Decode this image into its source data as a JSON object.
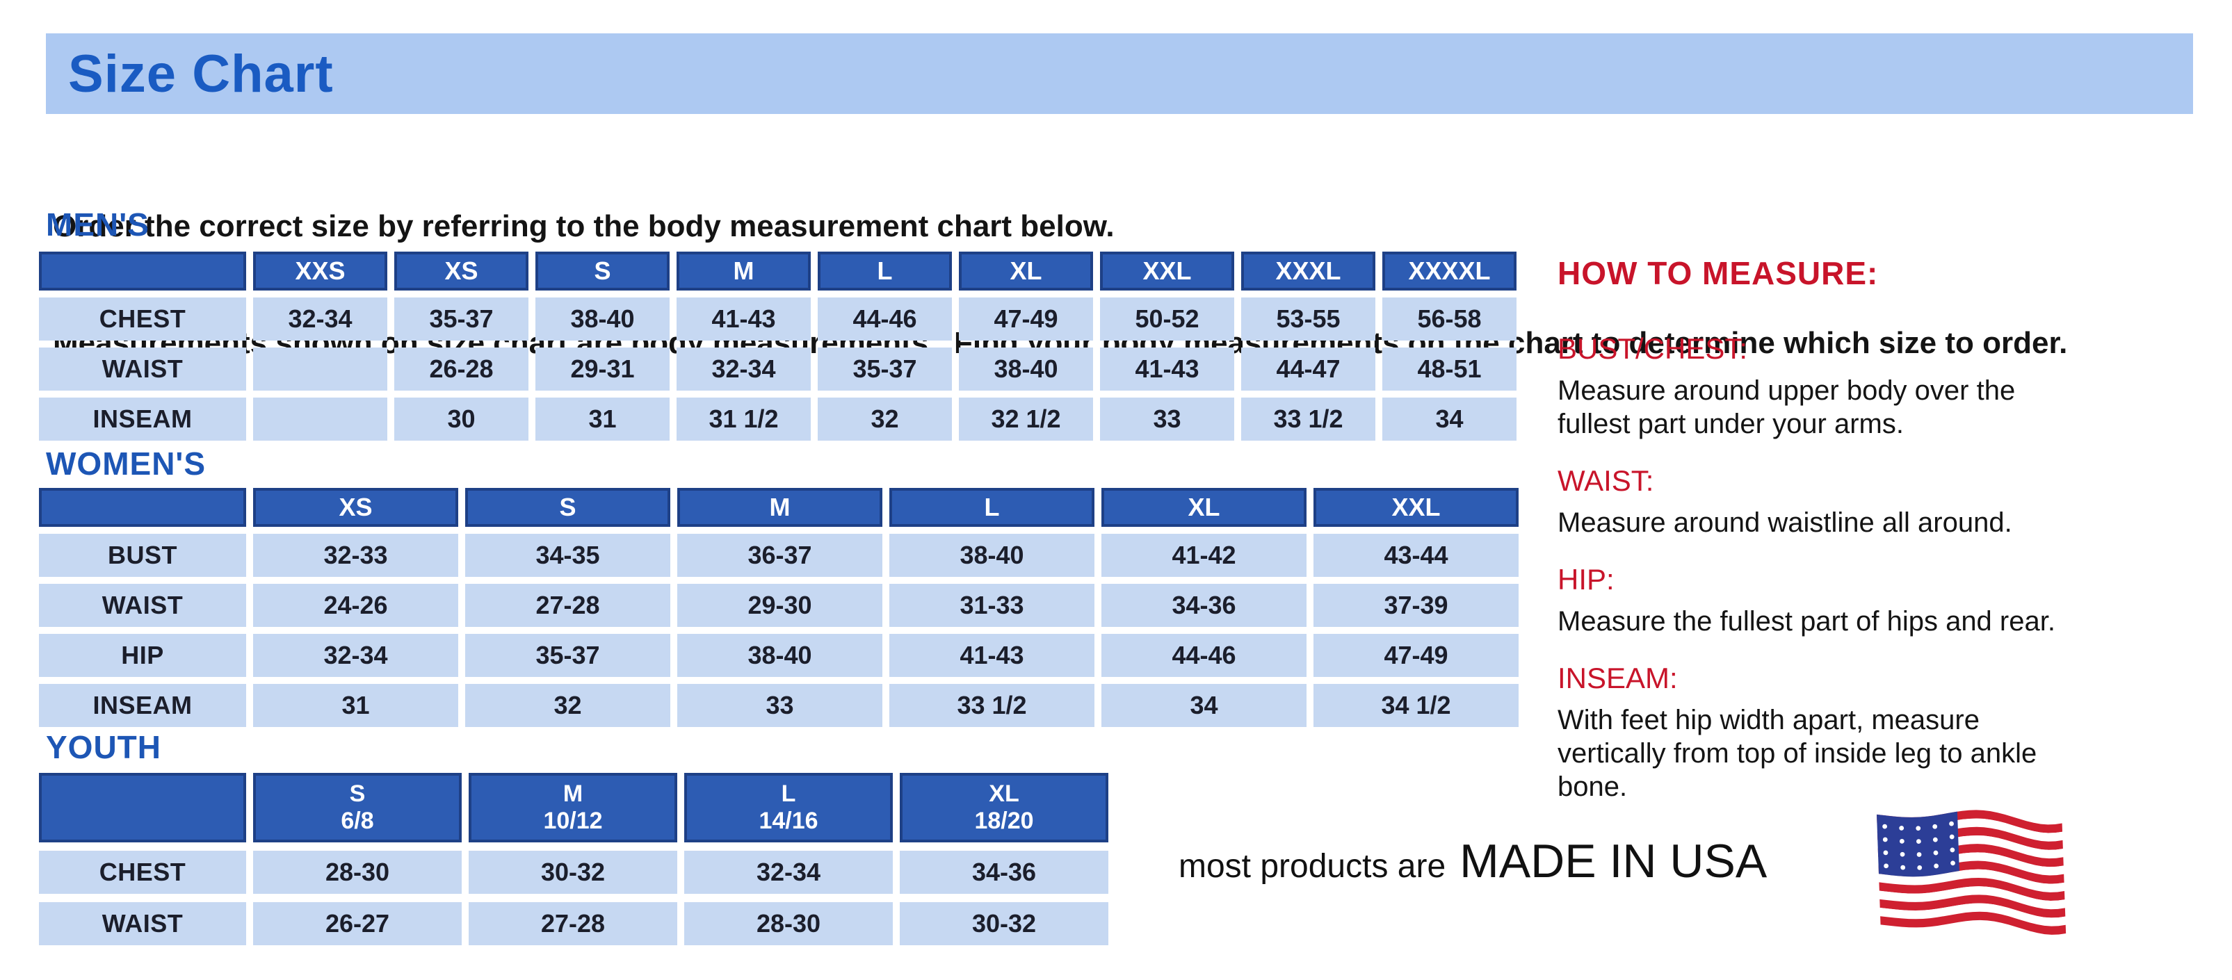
{
  "banner": {
    "title": "Size Chart"
  },
  "intro": {
    "line1": "Order the correct size by referring to the body measurement chart below.",
    "line2": "Measurements shown on size chart are body measurements.  Find your body measurements on the chart to determine which size to order."
  },
  "mens": {
    "heading": "MEN'S",
    "columns": [
      "XXS",
      "XS",
      "S",
      "M",
      "L",
      "XL",
      "XXL",
      "XXXL",
      "XXXXL"
    ],
    "rows": [
      {
        "label": "CHEST",
        "values": [
          "32-34",
          "35-37",
          "38-40",
          "41-43",
          "44-46",
          "47-49",
          "50-52",
          "53-55",
          "56-58"
        ]
      },
      {
        "label": "WAIST",
        "values": [
          "",
          "26-28",
          "29-31",
          "32-34",
          "35-37",
          "38-40",
          "41-43",
          "44-47",
          "48-51"
        ]
      },
      {
        "label": "INSEAM",
        "values": [
          "",
          "30",
          "31",
          "31 1/2",
          "32",
          "32 1/2",
          "33",
          "33 1/2",
          "34"
        ]
      }
    ]
  },
  "womens": {
    "heading": "WOMEN'S",
    "columns": [
      "XS",
      "S",
      "M",
      "L",
      "XL",
      "XXL"
    ],
    "rows": [
      {
        "label": "BUST",
        "values": [
          "32-33",
          "34-35",
          "36-37",
          "38-40",
          "41-42",
          "43-44"
        ]
      },
      {
        "label": "WAIST",
        "values": [
          "24-26",
          "27-28",
          "29-30",
          "31-33",
          "34-36",
          "37-39"
        ]
      },
      {
        "label": "HIP",
        "values": [
          "32-34",
          "35-37",
          "38-40",
          "41-43",
          "44-46",
          "47-49"
        ]
      },
      {
        "label": "INSEAM",
        "values": [
          "31",
          "32",
          "33",
          "33 1/2",
          "34",
          "34 1/2"
        ]
      }
    ]
  },
  "youth": {
    "heading": "YOUTH",
    "columns": [
      {
        "label": "S",
        "sub": "6/8"
      },
      {
        "label": "M",
        "sub": "10/12"
      },
      {
        "label": "L",
        "sub": "14/16"
      },
      {
        "label": "XL",
        "sub": "18/20"
      }
    ],
    "rows": [
      {
        "label": "CHEST",
        "values": [
          "28-30",
          "30-32",
          "32-34",
          "34-36"
        ]
      },
      {
        "label": "WAIST",
        "values": [
          "26-27",
          "27-28",
          "28-30",
          "30-32"
        ]
      }
    ]
  },
  "how_to_measure": {
    "title": "HOW TO MEASURE:",
    "items": [
      {
        "label": "BUST/CHEST:",
        "text": "Measure around upper body over the fullest part under your arms."
      },
      {
        "label": "WAIST:",
        "text": "Measure around waistline all around."
      },
      {
        "label": "HIP:",
        "text": "Measure the fullest part of hips and rear."
      },
      {
        "label": "INSEAM:",
        "text": "With feet hip width apart, measure vertically from top of inside leg to ankle bone."
      }
    ]
  },
  "footer": {
    "prefix": "most products are",
    "emphasis": "MADE IN USA",
    "flag_icon": "usa-flag"
  },
  "colors": {
    "banner_bg": "#adc9f2",
    "title_blue": "#1a5bc2",
    "heading_blue": "#1d56b5",
    "table_header_bg": "#2d5cb3",
    "table_header_border": "#1e4086",
    "cell_bg": "#c6d8f2",
    "red": "#c8142a",
    "flag_red": "#cf2030",
    "flag_blue": "#2c3e97"
  }
}
